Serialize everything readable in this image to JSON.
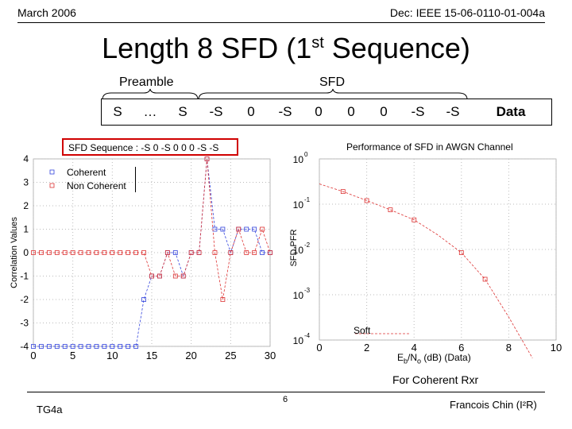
{
  "header": {
    "date": "March 2006",
    "doc_id": "Dec: IEEE 15-06-0110-01-004a"
  },
  "title": {
    "main": "Length 8 SFD (1",
    "sup": "st",
    "tail": " Sequence)"
  },
  "sequence": {
    "preamble_label": "Preamble",
    "sfd_label": "SFD",
    "cells": [
      "S",
      "…",
      "S",
      "-S",
      "0",
      "-S",
      "0",
      "0",
      "0",
      "-S",
      "-S",
      "Data"
    ]
  },
  "left_plot": {
    "highlight_text": "SFD Sequence : -S 0 -S 0 0 0 -S -S",
    "legend": [
      "Coherent",
      "Non Coherent"
    ],
    "ylabel": "Correlation Values"
  },
  "right_plot": {
    "title": "Performance of SFD in AWGN Channel",
    "ylabel": "SFD PFR",
    "xlabel": "E",
    "xlabel_sub1": "b",
    "xlabel_mid": "/N",
    "xlabel_sub2": "o",
    "xlabel_tail": " (dB) (Data)",
    "legend": "Soft",
    "caption": "For Coherent Rxr"
  },
  "footer": {
    "left": "TG4a",
    "page": "6",
    "right": "Francois Chin (I²R)"
  },
  "colors": {
    "coherent": "#3344dd",
    "noncoherent": "#dd3333",
    "highlight_box": "#d00000"
  },
  "chart_data": [
    {
      "type": "line",
      "x": [
        0,
        1,
        2,
        3,
        4,
        5,
        6,
        7,
        8,
        9,
        10,
        11,
        12,
        13,
        14,
        15,
        16,
        17,
        18,
        19,
        20,
        21,
        22,
        23,
        24,
        25,
        26,
        27,
        28,
        29,
        30
      ],
      "series": [
        {
          "name": "Coherent",
          "values": [
            -4,
            -4,
            -4,
            -4,
            -4,
            -4,
            -4,
            -4,
            -4,
            -4,
            -4,
            -4,
            -4,
            -4,
            -2,
            -1,
            -1,
            0,
            0,
            -1,
            0,
            0,
            4,
            1,
            1,
            0,
            1,
            1,
            1,
            0,
            0
          ]
        },
        {
          "name": "Non Coherent",
          "values": [
            0,
            0,
            0,
            0,
            0,
            0,
            0,
            0,
            0,
            0,
            0,
            0,
            0,
            0,
            0,
            -1,
            -1,
            0,
            -1,
            -1,
            0,
            0,
            4,
            0,
            -2,
            0,
            1,
            0,
            0,
            1,
            0
          ]
        }
      ],
      "xlim": [
        0,
        30
      ],
      "ylim": [
        -4,
        4
      ],
      "xticks": [
        0,
        5,
        10,
        15,
        20,
        25,
        30
      ],
      "yticks": [
        -4,
        -3,
        -2,
        -1,
        0,
        1,
        2,
        3,
        4
      ],
      "ylabel": "Correlation Values",
      "legend": "top-left",
      "grid": true
    },
    {
      "type": "line",
      "x": [
        0,
        1,
        2,
        3,
        4,
        5,
        6,
        7,
        8,
        9
      ],
      "series": [
        {
          "name": "Soft",
          "values": [
            0.28,
            0.19,
            0.12,
            0.075,
            0.045,
            0.021,
            0.0085,
            0.0022,
            0.00032,
            4e-05
          ]
        }
      ],
      "markers_x": [
        1,
        2,
        3,
        4,
        6,
        7
      ],
      "xlim": [
        0,
        10
      ],
      "ylim": [
        0.0001,
        1
      ],
      "yscale": "log",
      "xticks": [
        0,
        2,
        4,
        6,
        8,
        10
      ],
      "yticks": [
        "10^0",
        "10^-1",
        "10^-2",
        "10^-3",
        "10^-4"
      ],
      "title": "Performance of SFD in AWGN Channel",
      "ylabel": "SFD PFR",
      "legend": "bottom-left",
      "grid": true
    }
  ]
}
